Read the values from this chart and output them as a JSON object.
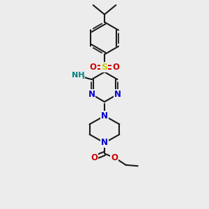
{
  "bg_color": "#ececec",
  "bond_color": "#1a1a1a",
  "N_color": "#0000cc",
  "O_color": "#cc0000",
  "S_color": "#cccc00",
  "teal_color": "#008080",
  "lw": 1.5,
  "figsize": [
    3.0,
    3.0
  ],
  "dpi": 100,
  "xlim": [
    0,
    10
  ],
  "ylim": [
    0,
    10
  ]
}
